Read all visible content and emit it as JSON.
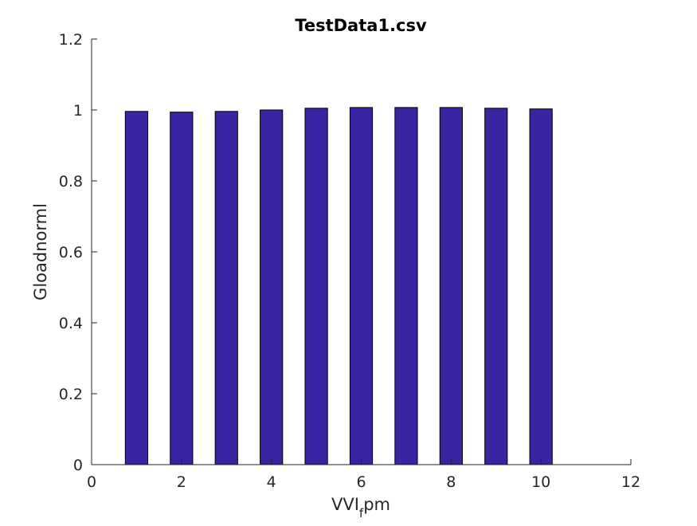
{
  "chart_data": {
    "type": "bar",
    "title": "TestData1.csv",
    "xlabel": "VVI",
    "xlabel_subscript": "f",
    "xlabel_suffix": "pm",
    "ylabel": "Gloadnorml",
    "categories": [
      1,
      2,
      3,
      4,
      5,
      6,
      7,
      8,
      9,
      10
    ],
    "values": [
      0.996,
      0.994,
      0.996,
      1.0,
      1.005,
      1.007,
      1.007,
      1.007,
      1.005,
      1.003
    ],
    "xlim": [
      0,
      12
    ],
    "ylim": [
      0,
      1.2
    ],
    "xticks": [
      0,
      2,
      4,
      6,
      8,
      10,
      12
    ],
    "xtick_labels": [
      "0",
      "2",
      "4",
      "6",
      "8",
      "10",
      "12"
    ],
    "yticks": [
      0,
      0.2,
      0.4,
      0.6,
      0.8,
      1,
      1.2
    ],
    "ytick_labels": [
      "0",
      "0.2",
      "0.4",
      "0.6",
      "0.8",
      "1",
      "1.2"
    ],
    "bar_width": 0.5,
    "bar_color": "#3a24a2",
    "grid": false,
    "legend": "none"
  }
}
